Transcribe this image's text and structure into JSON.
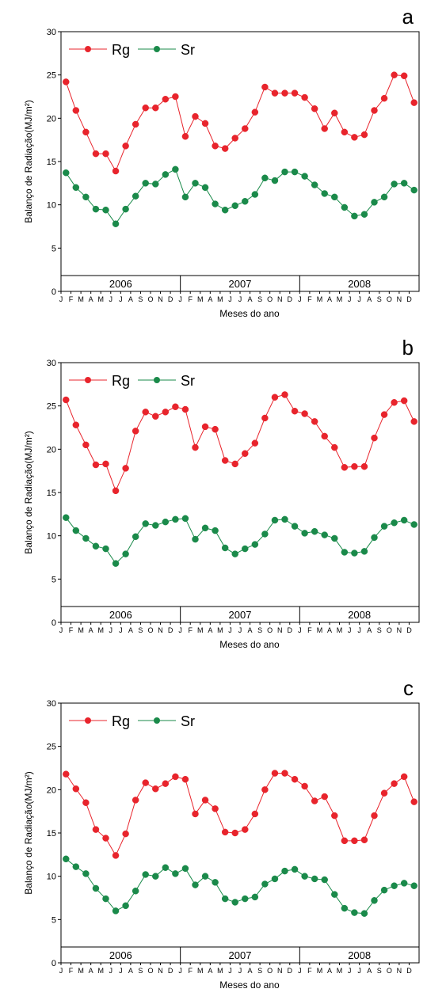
{
  "chart_data": [
    {
      "panel": "a",
      "type": "line",
      "ylabel": "Balanço de Radiação(MJ/m²)",
      "xlabel": "Meses do ano",
      "ylim": [
        0,
        30
      ],
      "yticks": [
        0,
        5,
        10,
        15,
        20,
        25,
        30
      ],
      "month_labels": [
        "J",
        "F",
        "M",
        "A",
        "M",
        "J",
        "J",
        "A",
        "S",
        "O",
        "N",
        "D",
        "J",
        "F",
        "M",
        "A",
        "M",
        "J",
        "J",
        "A",
        "S",
        "O",
        "N",
        "D",
        "J",
        "F",
        "M",
        "A",
        "M",
        "J",
        "J",
        "A",
        "S",
        "O",
        "N",
        "D"
      ],
      "years": [
        "2006",
        "2007",
        "2008"
      ],
      "legend": "top-left",
      "grid": false,
      "series": [
        {
          "name": "Rg",
          "color": "#e8242c",
          "values": [
            24.2,
            20.9,
            18.4,
            15.9,
            15.9,
            13.9,
            16.8,
            19.3,
            21.2,
            21.2,
            22.2,
            22.5,
            17.9,
            20.2,
            19.4,
            16.8,
            16.5,
            17.7,
            18.8,
            20.7,
            23.6,
            22.9,
            22.9,
            22.9,
            22.4,
            21.1,
            18.8,
            20.6,
            18.4,
            17.8,
            18.1,
            20.9,
            22.3,
            25.0,
            24.9,
            21.8
          ]
        },
        {
          "name": "Sr",
          "color": "#1a8a4a",
          "values": [
            13.7,
            12.0,
            10.9,
            9.5,
            9.4,
            7.8,
            9.5,
            11.0,
            12.5,
            12.4,
            13.5,
            14.1,
            10.9,
            12.5,
            12.0,
            10.1,
            9.4,
            9.9,
            10.4,
            11.2,
            13.1,
            12.8,
            13.8,
            13.8,
            13.3,
            12.3,
            11.3,
            10.9,
            9.7,
            8.7,
            8.9,
            10.3,
            10.9,
            12.4,
            12.5,
            11.7
          ]
        }
      ]
    },
    {
      "panel": "b",
      "type": "line",
      "ylabel": "Balanço de Radiação(MJ/m²)",
      "xlabel": "Meses do ano",
      "ylim": [
        0,
        30
      ],
      "yticks": [
        0,
        5,
        10,
        15,
        20,
        25,
        30
      ],
      "month_labels": [
        "J",
        "F",
        "M",
        "A",
        "M",
        "J",
        "J",
        "A",
        "S",
        "O",
        "N",
        "D",
        "J",
        "F",
        "M",
        "A",
        "M",
        "J",
        "J",
        "A",
        "S",
        "O",
        "N",
        "D",
        "J",
        "F",
        "M",
        "A",
        "M",
        "J",
        "J",
        "A",
        "S",
        "O",
        "N",
        "D"
      ],
      "years": [
        "2006",
        "2007",
        "2008"
      ],
      "legend": "top-left",
      "grid": false,
      "series": [
        {
          "name": "Rg",
          "color": "#e8242c",
          "values": [
            25.7,
            22.8,
            20.5,
            18.2,
            18.3,
            15.2,
            17.8,
            22.1,
            24.3,
            23.8,
            24.3,
            24.9,
            24.6,
            20.2,
            22.6,
            22.3,
            18.7,
            18.3,
            19.5,
            20.7,
            23.6,
            26.0,
            26.3,
            24.4,
            24.1,
            23.2,
            21.5,
            20.2,
            17.9,
            18.0,
            18.0,
            21.3,
            24.0,
            25.4,
            25.6,
            23.2
          ]
        },
        {
          "name": "Sr",
          "color": "#1a8a4a",
          "values": [
            12.1,
            10.6,
            9.7,
            8.8,
            8.5,
            6.8,
            7.9,
            9.9,
            11.4,
            11.2,
            11.6,
            11.9,
            12.0,
            9.6,
            10.9,
            10.6,
            8.6,
            7.9,
            8.5,
            9.0,
            10.2,
            11.8,
            11.9,
            11.1,
            10.3,
            10.5,
            10.1,
            9.7,
            8.1,
            8.0,
            8.2,
            9.8,
            11.1,
            11.5,
            11.8,
            11.3
          ]
        }
      ]
    },
    {
      "panel": "c",
      "type": "line",
      "ylabel": "Balanço de Radiação(MJ/m²)",
      "xlabel": "Meses do ano",
      "ylim": [
        0,
        30
      ],
      "yticks": [
        0,
        5,
        10,
        15,
        20,
        25,
        30
      ],
      "month_labels": [
        "J",
        "F",
        "M",
        "A",
        "M",
        "J",
        "J",
        "A",
        "S",
        "O",
        "N",
        "D",
        "J",
        "F",
        "M",
        "A",
        "M",
        "J",
        "J",
        "A",
        "S",
        "O",
        "N",
        "D",
        "J",
        "F",
        "M",
        "A",
        "M",
        "J",
        "J",
        "A",
        "S",
        "O",
        "N",
        "D"
      ],
      "years": [
        "2006",
        "2007",
        "2008"
      ],
      "legend": "top-left",
      "grid": false,
      "series": [
        {
          "name": "Rg",
          "color": "#e8242c",
          "values": [
            21.8,
            20.1,
            18.5,
            15.4,
            14.4,
            12.4,
            14.9,
            18.8,
            20.8,
            20.1,
            20.7,
            21.5,
            21.2,
            17.2,
            18.8,
            17.8,
            15.1,
            15.0,
            15.4,
            17.2,
            20.0,
            21.9,
            21.9,
            21.2,
            20.4,
            18.7,
            19.2,
            17.0,
            14.1,
            14.1,
            14.2,
            17.0,
            19.6,
            20.7,
            21.5,
            18.6
          ]
        },
        {
          "name": "Sr",
          "color": "#1a8a4a",
          "values": [
            12.0,
            11.1,
            10.3,
            8.6,
            7.4,
            6.0,
            6.6,
            8.3,
            10.2,
            10.0,
            11.0,
            10.3,
            10.9,
            9.0,
            10.0,
            9.3,
            7.4,
            7.0,
            7.4,
            7.6,
            9.1,
            9.7,
            10.6,
            10.8,
            10.0,
            9.7,
            9.6,
            7.9,
            6.3,
            5.8,
            5.7,
            7.2,
            8.4,
            8.9,
            9.2,
            8.9
          ]
        }
      ]
    }
  ]
}
